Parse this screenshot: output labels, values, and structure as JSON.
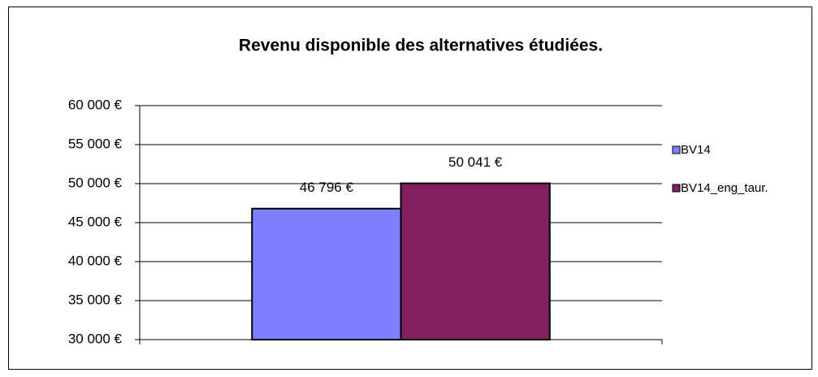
{
  "chart_data": {
    "type": "bar",
    "title": "Revenu disponible des alternatives étudiées.",
    "categories": [
      null
    ],
    "series": [
      {
        "name": "BV14",
        "color": "#8080ff",
        "values": [
          46796
        ],
        "value_labels": [
          "46 796 €"
        ]
      },
      {
        "name": "BV14_eng_taur.",
        "color": "#802060",
        "values": [
          50041
        ],
        "value_labels": [
          "50 041 €"
        ]
      }
    ],
    "ylim": [
      30000,
      60000
    ],
    "yticks": [
      {
        "value": 30000,
        "label": "30 000 €"
      },
      {
        "value": 35000,
        "label": "35 000 €"
      },
      {
        "value": 40000,
        "label": "40 000 €"
      },
      {
        "value": 45000,
        "label": "45 000 €"
      },
      {
        "value": 50000,
        "label": "50 000 €"
      },
      {
        "value": 55000,
        "label": "55 000 €"
      },
      {
        "value": 60000,
        "label": "60 000 €"
      }
    ],
    "grid": true,
    "legend": "right"
  }
}
